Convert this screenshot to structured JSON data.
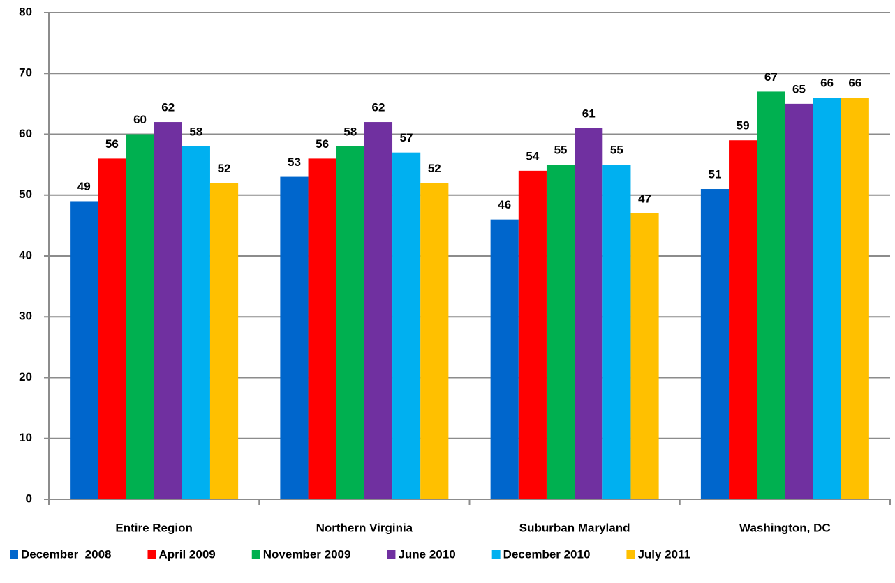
{
  "chart_data": {
    "type": "bar",
    "categories": [
      "Entire Region",
      "Northern Virginia",
      "Suburban Maryland",
      "Washington, DC"
    ],
    "series": [
      {
        "name": "December  2008",
        "color": "#0066cc",
        "values": [
          49,
          53,
          46,
          51
        ]
      },
      {
        "name": "April 2009",
        "color": "#ff0000",
        "values": [
          56,
          56,
          54,
          59
        ]
      },
      {
        "name": "November 2009",
        "color": "#00b050",
        "values": [
          60,
          58,
          55,
          67
        ]
      },
      {
        "name": "June 2010",
        "color": "#7030a0",
        "values": [
          62,
          62,
          61,
          65
        ]
      },
      {
        "name": "December 2010",
        "color": "#00b0f0",
        "values": [
          58,
          57,
          55,
          66
        ]
      },
      {
        "name": "July 2011",
        "color": "#ffc000",
        "values": [
          52,
          52,
          47,
          66
        ]
      }
    ],
    "ylim": [
      0,
      80
    ],
    "yticks": [
      0,
      10,
      20,
      30,
      40,
      50,
      60,
      70,
      80
    ],
    "grid": true,
    "legend": "bottom"
  }
}
